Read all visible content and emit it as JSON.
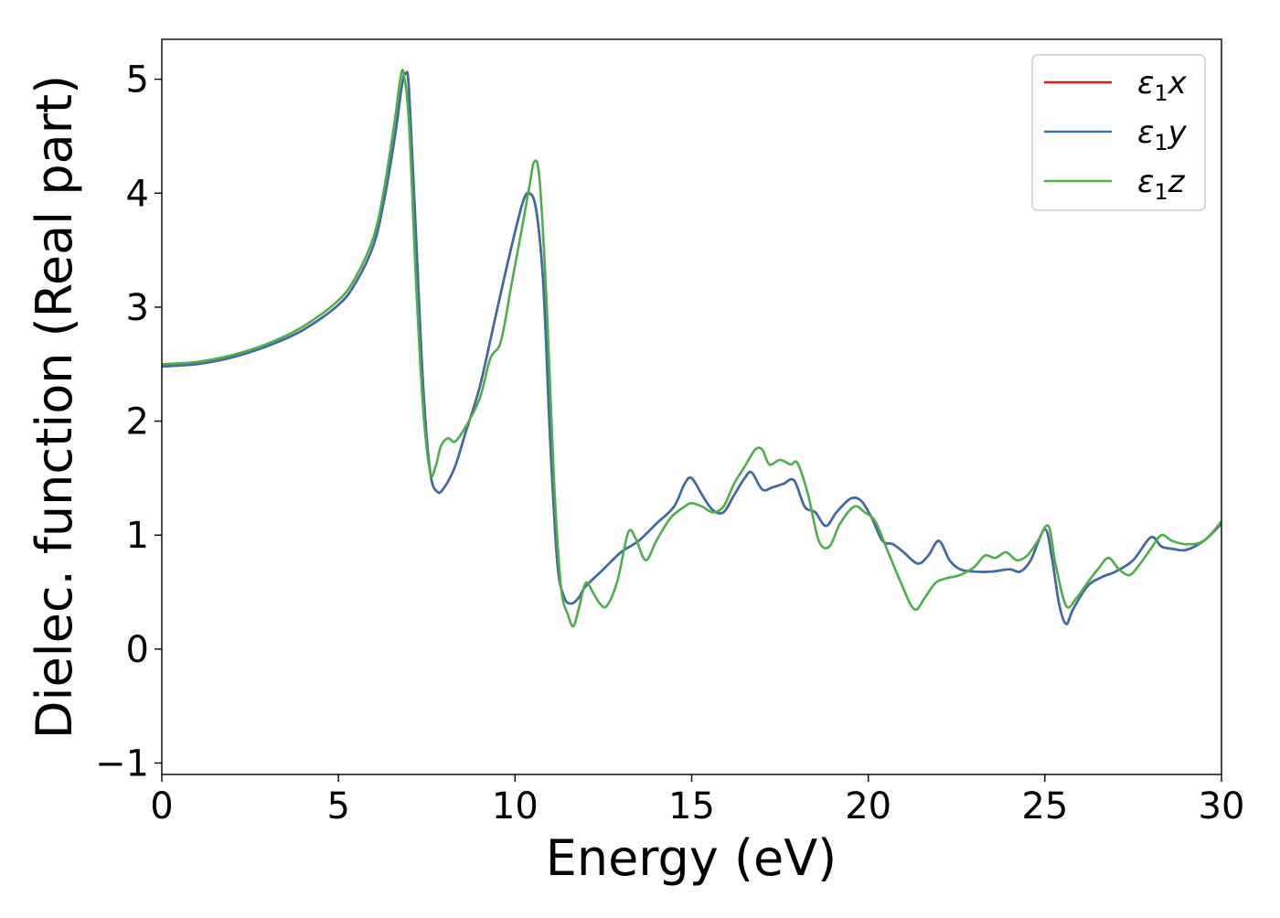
{
  "chart_data": {
    "type": "line",
    "title": "",
    "xlabel": "Energy (eV)",
    "ylabel": "Dielec. function (Real part)",
    "xlim": [
      0,
      30
    ],
    "ylim": [
      -1.1,
      5.35
    ],
    "xticks": [
      0,
      5,
      10,
      15,
      20,
      25,
      30
    ],
    "xtick_labels": [
      "0",
      "5",
      "10",
      "15",
      "20",
      "25",
      "30"
    ],
    "yticks": [
      -1,
      0,
      1,
      2,
      3,
      4,
      5
    ],
    "ytick_labels": [
      "−1",
      "0",
      "1",
      "2",
      "3",
      "4",
      "5"
    ],
    "grid": false,
    "legend_position": "top-right",
    "series": [
      {
        "name": "ε1x",
        "color": "#e41a1c",
        "x": [
          0,
          1,
          2,
          3,
          4,
          5,
          5.5,
          6,
          6.3,
          6.6,
          6.8,
          6.9,
          7.0,
          7.2,
          7.4,
          7.6,
          7.8,
          8.0,
          8.3,
          8.6,
          9.0,
          9.4,
          9.8,
          10.2,
          10.4,
          10.6,
          10.8,
          11.0,
          11.2,
          11.4,
          11.6,
          11.8,
          12.0,
          12.5,
          13.0,
          13.5,
          14.0,
          14.5,
          14.8,
          15.0,
          15.3,
          15.6,
          15.9,
          16.2,
          16.5,
          16.7,
          17.0,
          17.3,
          17.6,
          17.9,
          18.2,
          18.5,
          18.8,
          19.1,
          19.5,
          19.8,
          20.1,
          20.4,
          20.7,
          21.0,
          21.4,
          21.7,
          22.0,
          22.3,
          22.6,
          23.0,
          23.5,
          24.0,
          24.3,
          24.6,
          25.0,
          25.2,
          25.4,
          25.6,
          25.8,
          26.2,
          26.6,
          27.0,
          27.5,
          28.0,
          28.3,
          28.6,
          29.0,
          29.5,
          30.0
        ],
        "y": [
          2.48,
          2.5,
          2.56,
          2.66,
          2.8,
          3.02,
          3.22,
          3.55,
          3.95,
          4.5,
          4.95,
          5.05,
          4.9,
          3.6,
          2.3,
          1.55,
          1.38,
          1.42,
          1.6,
          1.9,
          2.3,
          2.85,
          3.4,
          3.9,
          4.0,
          3.85,
          3.2,
          1.8,
          0.75,
          0.45,
          0.4,
          0.45,
          0.55,
          0.7,
          0.85,
          0.95,
          1.1,
          1.25,
          1.45,
          1.5,
          1.35,
          1.22,
          1.2,
          1.35,
          1.5,
          1.55,
          1.4,
          1.42,
          1.45,
          1.48,
          1.25,
          1.2,
          1.08,
          1.2,
          1.32,
          1.3,
          1.15,
          0.95,
          0.92,
          0.85,
          0.75,
          0.82,
          0.95,
          0.78,
          0.7,
          0.68,
          0.68,
          0.7,
          0.68,
          0.78,
          1.05,
          0.8,
          0.4,
          0.22,
          0.35,
          0.55,
          0.63,
          0.68,
          0.78,
          0.98,
          0.9,
          0.88,
          0.87,
          0.95,
          1.1
        ]
      },
      {
        "name": "ε1y",
        "color": "#3a6ea5",
        "x": [
          0,
          1,
          2,
          3,
          4,
          5,
          5.5,
          6,
          6.3,
          6.6,
          6.8,
          6.9,
          7.0,
          7.2,
          7.4,
          7.6,
          7.8,
          8.0,
          8.3,
          8.6,
          9.0,
          9.4,
          9.8,
          10.2,
          10.4,
          10.6,
          10.8,
          11.0,
          11.2,
          11.4,
          11.6,
          11.8,
          12.0,
          12.5,
          13.0,
          13.5,
          14.0,
          14.5,
          14.8,
          15.0,
          15.3,
          15.6,
          15.9,
          16.2,
          16.5,
          16.7,
          17.0,
          17.3,
          17.6,
          17.9,
          18.2,
          18.5,
          18.8,
          19.1,
          19.5,
          19.8,
          20.1,
          20.4,
          20.7,
          21.0,
          21.4,
          21.7,
          22.0,
          22.3,
          22.6,
          23.0,
          23.5,
          24.0,
          24.3,
          24.6,
          25.0,
          25.2,
          25.4,
          25.6,
          25.8,
          26.2,
          26.6,
          27.0,
          27.5,
          28.0,
          28.3,
          28.6,
          29.0,
          29.5,
          30.0
        ],
        "y": [
          2.48,
          2.5,
          2.56,
          2.66,
          2.8,
          3.02,
          3.22,
          3.55,
          3.95,
          4.5,
          4.95,
          5.05,
          4.9,
          3.6,
          2.3,
          1.55,
          1.38,
          1.42,
          1.6,
          1.9,
          2.3,
          2.85,
          3.4,
          3.9,
          4.0,
          3.85,
          3.2,
          1.8,
          0.75,
          0.45,
          0.4,
          0.45,
          0.55,
          0.7,
          0.85,
          0.95,
          1.1,
          1.25,
          1.45,
          1.5,
          1.35,
          1.22,
          1.2,
          1.35,
          1.5,
          1.55,
          1.4,
          1.42,
          1.45,
          1.48,
          1.25,
          1.2,
          1.08,
          1.2,
          1.32,
          1.3,
          1.15,
          0.95,
          0.92,
          0.85,
          0.75,
          0.82,
          0.95,
          0.78,
          0.7,
          0.68,
          0.68,
          0.7,
          0.68,
          0.78,
          1.05,
          0.8,
          0.4,
          0.22,
          0.35,
          0.55,
          0.63,
          0.68,
          0.78,
          0.98,
          0.9,
          0.88,
          0.87,
          0.95,
          1.1
        ]
      },
      {
        "name": "ε1z",
        "color": "#4daf4a",
        "x": [
          0,
          1,
          2,
          3,
          4,
          5,
          5.5,
          6,
          6.3,
          6.6,
          6.75,
          6.85,
          7.0,
          7.2,
          7.4,
          7.6,
          7.75,
          7.9,
          8.1,
          8.3,
          8.6,
          9.0,
          9.3,
          9.6,
          9.9,
          10.2,
          10.4,
          10.55,
          10.7,
          10.9,
          11.1,
          11.3,
          11.5,
          11.65,
          11.8,
          12.0,
          12.2,
          12.4,
          12.6,
          12.9,
          13.2,
          13.4,
          13.7,
          14.0,
          14.4,
          14.8,
          15.0,
          15.3,
          15.6,
          15.9,
          16.2,
          16.5,
          16.8,
          17.0,
          17.2,
          17.5,
          17.8,
          18.0,
          18.3,
          18.6,
          18.9,
          19.2,
          19.6,
          19.9,
          20.2,
          20.5,
          20.9,
          21.3,
          21.6,
          21.9,
          22.2,
          22.6,
          23.0,
          23.3,
          23.6,
          23.9,
          24.2,
          24.5,
          24.8,
          25.1,
          25.3,
          25.6,
          25.9,
          26.2,
          26.5,
          26.8,
          27.1,
          27.4,
          27.7,
          28.0,
          28.3,
          28.6,
          29.0,
          29.5,
          30.0
        ],
        "y": [
          2.5,
          2.52,
          2.58,
          2.68,
          2.83,
          3.06,
          3.27,
          3.62,
          4.05,
          4.65,
          5.0,
          5.05,
          4.6,
          3.2,
          2.1,
          1.55,
          1.6,
          1.78,
          1.85,
          1.82,
          1.95,
          2.2,
          2.55,
          2.7,
          3.2,
          3.7,
          4.05,
          4.28,
          4.1,
          3.0,
          1.5,
          0.55,
          0.3,
          0.2,
          0.35,
          0.58,
          0.5,
          0.4,
          0.38,
          0.6,
          1.02,
          0.98,
          0.78,
          0.95,
          1.15,
          1.25,
          1.28,
          1.25,
          1.2,
          1.25,
          1.45,
          1.6,
          1.75,
          1.75,
          1.62,
          1.66,
          1.62,
          1.63,
          1.35,
          0.95,
          0.9,
          1.1,
          1.25,
          1.2,
          1.12,
          0.9,
          0.6,
          0.35,
          0.45,
          0.58,
          0.62,
          0.65,
          0.72,
          0.82,
          0.8,
          0.85,
          0.78,
          0.82,
          0.95,
          1.08,
          0.75,
          0.38,
          0.45,
          0.58,
          0.7,
          0.8,
          0.7,
          0.65,
          0.75,
          0.88,
          1.0,
          0.95,
          0.92,
          0.95,
          1.12
        ]
      }
    ]
  }
}
